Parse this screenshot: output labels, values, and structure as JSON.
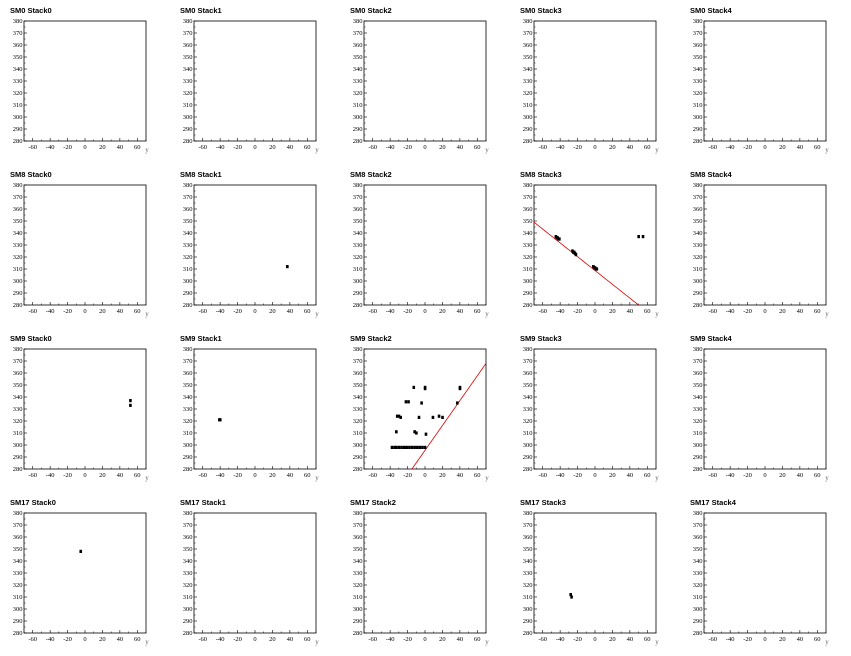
{
  "panel_defaults": {
    "xlabel": "y",
    "ylim": [
      280,
      380
    ],
    "xlim": [
      -70,
      70
    ],
    "y_ticks": [
      "280",
      "290",
      "300",
      "310",
      "320",
      "330",
      "340",
      "350",
      "360",
      "370",
      "380"
    ],
    "x_ticks": [
      "-60",
      "-40",
      "-20",
      "0",
      "20",
      "40",
      "60"
    ],
    "x_tick_values": [
      -60,
      -40,
      -20,
      0,
      20,
      40,
      60
    ],
    "y_tick_values": [
      280,
      290,
      300,
      310,
      320,
      330,
      340,
      350,
      360,
      370,
      380
    ]
  },
  "colors": {
    "points": "#000000",
    "fit_line": "#e00000",
    "frame": "#000000"
  },
  "chart_data": [
    {
      "type": "scatter",
      "title": "SM0 Stack0",
      "points": [],
      "fit": null
    },
    {
      "type": "scatter",
      "title": "SM0 Stack1",
      "points": [],
      "fit": null
    },
    {
      "type": "scatter",
      "title": "SM0 Stack2",
      "points": [],
      "fit": null
    },
    {
      "type": "scatter",
      "title": "SM0 Stack3",
      "points": [],
      "fit": null
    },
    {
      "type": "scatter",
      "title": "SM0 Stack4",
      "points": [],
      "fit": null
    },
    {
      "type": "scatter",
      "title": "SM8 Stack0",
      "points": [],
      "fit": null
    },
    {
      "type": "scatter",
      "title": "SM8 Stack1",
      "points": [
        [
          37,
          312
        ]
      ],
      "fit": null
    },
    {
      "type": "scatter",
      "title": "SM8 Stack2",
      "points": [],
      "fit": null
    },
    {
      "type": "scatter",
      "title": "SM8 Stack3",
      "points": [
        [
          -45,
          337
        ],
        [
          -44,
          336
        ],
        [
          -43,
          336
        ],
        [
          -42,
          335
        ],
        [
          -41,
          335
        ],
        [
          -26,
          325
        ],
        [
          -25,
          324
        ],
        [
          -24,
          324
        ],
        [
          -23,
          323
        ],
        [
          -22,
          322
        ],
        [
          -2,
          312
        ],
        [
          -1,
          311
        ],
        [
          0,
          311
        ],
        [
          1,
          310
        ],
        [
          2,
          310
        ],
        [
          50,
          337
        ],
        [
          55,
          337
        ]
      ],
      "fit": [
        [
          -70,
          349
        ],
        [
          50,
          280
        ]
      ]
    },
    {
      "type": "scatter",
      "title": "SM8 Stack4",
      "points": [],
      "fit": null
    },
    {
      "type": "scatter",
      "title": "SM9 Stack0",
      "points": [
        [
          52,
          337
        ],
        [
          52,
          333
        ]
      ],
      "fit": null
    },
    {
      "type": "scatter",
      "title": "SM9 Stack1",
      "points": [
        [
          -41,
          321
        ],
        [
          -40,
          321
        ]
      ],
      "fit": null
    },
    {
      "type": "scatter",
      "title": "SM9 Stack2",
      "points": [
        [
          -38,
          298
        ],
        [
          -35,
          298
        ],
        [
          -33,
          298
        ],
        [
          -30,
          298
        ],
        [
          -27,
          298
        ],
        [
          -24,
          298
        ],
        [
          -21,
          298
        ],
        [
          -18,
          298
        ],
        [
          -15,
          298
        ],
        [
          -12,
          298
        ],
        [
          -9,
          298
        ],
        [
          -6,
          298
        ],
        [
          -3,
          298
        ],
        [
          0,
          298
        ],
        [
          -33,
          311
        ],
        [
          -32,
          324
        ],
        [
          -30,
          324
        ],
        [
          -28,
          323
        ],
        [
          -22,
          336
        ],
        [
          -19,
          336
        ],
        [
          -13,
          348
        ],
        [
          -12,
          311
        ],
        [
          -10,
          310
        ],
        [
          -7,
          323
        ],
        [
          -4,
          335
        ],
        [
          0,
          348
        ],
        [
          0,
          347
        ],
        [
          1,
          309
        ],
        [
          9,
          323
        ],
        [
          16,
          324
        ],
        [
          20,
          323
        ],
        [
          37,
          335
        ],
        [
          40,
          348
        ],
        [
          40,
          347
        ]
      ],
      "fit": [
        [
          -15,
          280
        ],
        [
          70,
          368
        ]
      ]
    },
    {
      "type": "scatter",
      "title": "SM9 Stack3",
      "points": [],
      "fit": null
    },
    {
      "type": "scatter",
      "title": "SM9 Stack4",
      "points": [],
      "fit": null
    },
    {
      "type": "scatter",
      "title": "SM17 Stack0",
      "points": [
        [
          -5,
          348
        ]
      ],
      "fit": null
    },
    {
      "type": "scatter",
      "title": "SM17 Stack1",
      "points": [],
      "fit": null
    },
    {
      "type": "scatter",
      "title": "SM17 Stack2",
      "points": [],
      "fit": null
    },
    {
      "type": "scatter",
      "title": "SM17 Stack3",
      "points": [
        [
          -28,
          312
        ],
        [
          -27,
          310
        ]
      ],
      "fit": null
    },
    {
      "type": "scatter",
      "title": "SM17 Stack4",
      "points": [],
      "fit": null
    }
  ]
}
